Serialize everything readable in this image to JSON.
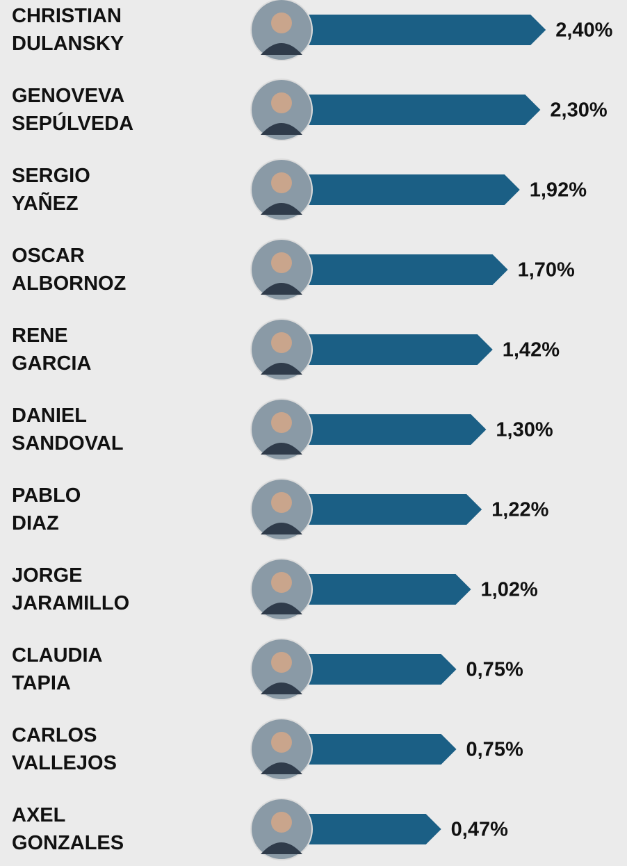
{
  "chart_data": {
    "type": "bar",
    "orientation": "horizontal",
    "color": "#1b5f85",
    "categories": [
      "CHRISTIAN\nDULANSKY",
      "GENOVEVA\nSEPÚLVEDA",
      "SERGIO\nYAÑEZ",
      "OSCAR\nALBORNOZ",
      "RENE\nGARCIA",
      "DANIEL\nSANDOVAL",
      "PABLO\nDIAZ",
      "JORGE\nJARAMILLO",
      "CLAUDIA\nTAPIA",
      "CARLOS\nVALLEJOS",
      "AXEL\nGONZALES"
    ],
    "values": [
      2.4,
      2.3,
      1.92,
      1.7,
      1.42,
      1.3,
      1.22,
      1.02,
      0.75,
      0.75,
      0.47
    ],
    "value_labels": [
      "2,40%",
      "2,30%",
      "1,92%",
      "1,70%",
      "1,42%",
      "1,30%",
      "1,22%",
      "1,02%",
      "0,75%",
      "0,75%",
      "0,47%"
    ]
  }
}
